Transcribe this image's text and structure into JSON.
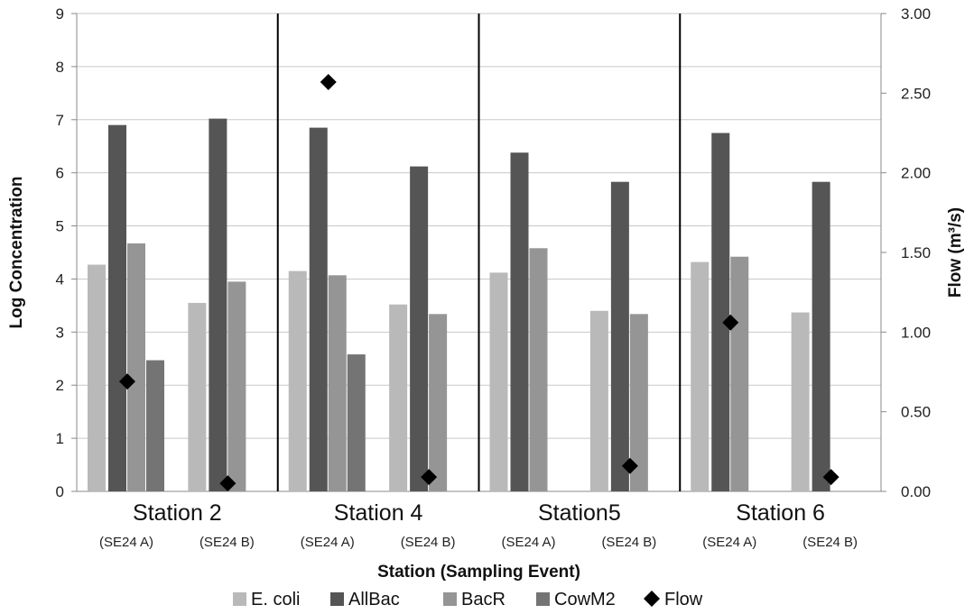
{
  "chart_data": {
    "type": "bar",
    "xlabel": "Station (Sampling Event)",
    "ylabel": "Log Concentration",
    "y2label": "Flow (m³/s)",
    "ylim": [
      0,
      9
    ],
    "y2lim": [
      0,
      3.0
    ],
    "yticks": [
      "0",
      "1",
      "2",
      "3",
      "4",
      "5",
      "6",
      "7",
      "8",
      "9"
    ],
    "y2ticks": [
      "0.00",
      "0.50",
      "1.00",
      "1.50",
      "2.00",
      "2.50",
      "3.00"
    ],
    "grid": true,
    "legend_position": "bottom",
    "stations": [
      "Station 2",
      "Station 4",
      "Station5",
      "Station 6"
    ],
    "events": [
      "(SE24 A)",
      "(SE24 B)",
      "(SE24 A)",
      "(SE24 B)",
      "(SE24 A)",
      "(SE24 B)",
      "(SE24 A)",
      "(SE24 B)"
    ],
    "series": [
      {
        "name": "E. coli",
        "color": "#b9b9b9",
        "values": [
          4.27,
          3.55,
          4.15,
          3.52,
          4.12,
          3.4,
          4.32,
          3.37
        ]
      },
      {
        "name": "AllBac",
        "color": "#555555",
        "values": [
          6.9,
          7.02,
          6.85,
          6.12,
          6.38,
          5.83,
          6.75,
          5.83
        ]
      },
      {
        "name": "BacR",
        "color": "#959595",
        "values": [
          4.67,
          3.95,
          4.07,
          3.34,
          4.58,
          3.34,
          4.42,
          null
        ]
      },
      {
        "name": "CowM2",
        "color": "#747474",
        "values": [
          2.47,
          null,
          2.58,
          null,
          null,
          null,
          null,
          null
        ]
      }
    ],
    "flow": {
      "name": "Flow",
      "color": "#000000",
      "axis": "right",
      "values": [
        0.69,
        0.05,
        2.57,
        0.09,
        null,
        0.16,
        1.06,
        0.09
      ]
    }
  }
}
